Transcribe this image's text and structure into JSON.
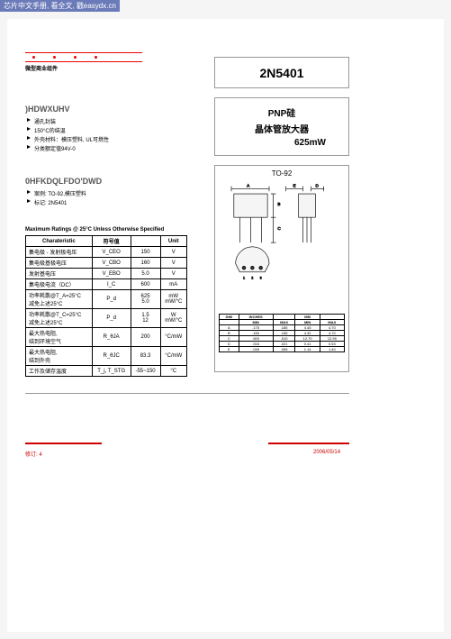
{
  "banner": "芯片中文手册, 看全文, 戳easydx.cn",
  "logo_subtitle": "微型商业组件",
  "part_number": "2N5401",
  "description": {
    "line1": "PNP硅",
    "line2": "晶体管放大器",
    "line3": "625mW"
  },
  "features": {
    "head": ")HDWXUHV",
    "items": [
      "通孔封装",
      "150°C的结温",
      "外壳材料：模压塑料, UL可燃性",
      "分类额定值94V-0"
    ]
  },
  "mechanical": {
    "head": "0HFKDQLFDO'DWD",
    "items": [
      "案例: TO-92,模压塑料",
      "标记: 2N5401"
    ]
  },
  "overlap_text": "Maximum Ratings @ 25°C Unless Otherwise Specified",
  "table": {
    "headers": [
      "Charateristic",
      "符号值",
      "",
      "Unit"
    ],
    "rows": [
      [
        "集电极 - 发射极电压",
        "V_CEO",
        "150",
        "V"
      ],
      [
        "集电极基极电压",
        "V_CBO",
        "160",
        "V"
      ],
      [
        "发射基电压",
        "V_EBO",
        "5.0",
        "V"
      ],
      [
        "集电极电流（DC）",
        "I_C",
        "600",
        "mA"
      ],
      [
        "功率耗散@T_A=25°C\n减免上述25°C",
        "P_d",
        "625\n5.0",
        "mW\nmW/°C"
      ],
      [
        "功率耗散@T_C=25°C\n减免上述25°C",
        "P_d",
        "1.5\n12",
        "W\nmW/°C"
      ],
      [
        "最大热电阻,\n结到环境空气",
        "R_θJA",
        "200",
        "°C/mW"
      ],
      [
        "最大热电阻,\n结到外壳",
        "R_θJC",
        "83.3",
        "°C/mW"
      ],
      [
        "工作及储存温度",
        "T_j, T_STG",
        "-55~150",
        "°C"
      ]
    ]
  },
  "package": {
    "label": "TO-92",
    "dim_labels": [
      "A",
      "B",
      "C",
      "D",
      "E"
    ],
    "dim_headers": [
      "DIM",
      "INCHES",
      "",
      "MM",
      ""
    ],
    "dim_sub": [
      "",
      "MIN",
      "MAX",
      "MIN",
      "MAX"
    ],
    "dims": [
      [
        "A",
        ".175",
        ".185",
        "4.45",
        "4.70"
      ],
      [
        "B",
        ".160",
        ".185",
        "4.32",
        "4.70"
      ],
      [
        "C",
        ".500",
        ".510",
        "12.70",
        "12.95"
      ],
      [
        "D",
        ".016",
        ".021",
        "0.41",
        "0.53"
      ],
      [
        "E",
        ".045",
        ".055",
        "1.14",
        "1.40"
      ]
    ]
  },
  "footer": {
    "rev": "修订: 4",
    "date": "2006/05/14"
  },
  "colors": {
    "red": "#c00",
    "banner_bg": "#6b7ab8",
    "line_gray": "#999"
  }
}
